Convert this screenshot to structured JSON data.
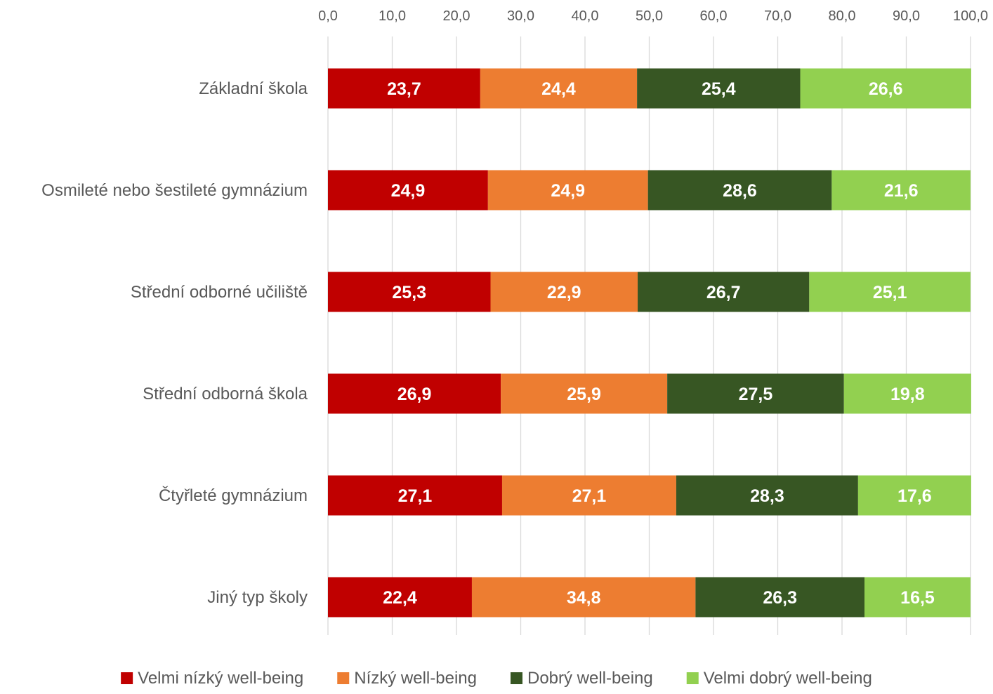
{
  "chart_data": {
    "type": "bar",
    "orientation": "horizontal",
    "stacked": true,
    "categories": [
      "Základní škola",
      "Osmileté nebo šestileté gymnázium",
      "Střední odborné učiliště",
      "Střední odborná škola",
      "Čtyřleté gymnázium",
      "Jiný typ školy"
    ],
    "series": [
      {
        "name": "Velmi nízký well-being",
        "color": "#c00000",
        "values": [
          23.7,
          24.9,
          25.3,
          26.9,
          27.1,
          22.4
        ],
        "labels": [
          "23,7",
          "24,9",
          "25,3",
          "26,9",
          "27,1",
          "22,4"
        ]
      },
      {
        "name": "Nízký well-being",
        "color": "#ed7d31",
        "values": [
          24.4,
          24.9,
          22.9,
          25.9,
          27.1,
          34.8
        ],
        "labels": [
          "24,4",
          "24,9",
          "22,9",
          "25,9",
          "27,1",
          "34,8"
        ]
      },
      {
        "name": "Dobrý well-being",
        "color": "#375623",
        "values": [
          25.4,
          28.6,
          26.7,
          27.5,
          28.3,
          26.3
        ],
        "labels": [
          "25,4",
          "28,6",
          "26,7",
          "27,5",
          "28,3",
          "26,3"
        ]
      },
      {
        "name": "Velmi dobrý well-being",
        "color": "#92d050",
        "values": [
          26.6,
          21.6,
          25.1,
          19.8,
          17.6,
          16.5
        ],
        "labels": [
          "26,6",
          "21,6",
          "25,1",
          "19,8",
          "17,6",
          "16,5"
        ]
      }
    ],
    "x_ticks": [
      "0,0",
      "10,0",
      "20,0",
      "30,0",
      "40,0",
      "50,0",
      "60,0",
      "70,0",
      "80,0",
      "90,0",
      "100,0"
    ],
    "xlim": [
      0,
      100
    ],
    "x_axis_position": "top",
    "grid": true,
    "legend_position": "bottom",
    "title": "",
    "xlabel": "",
    "ylabel": ""
  }
}
